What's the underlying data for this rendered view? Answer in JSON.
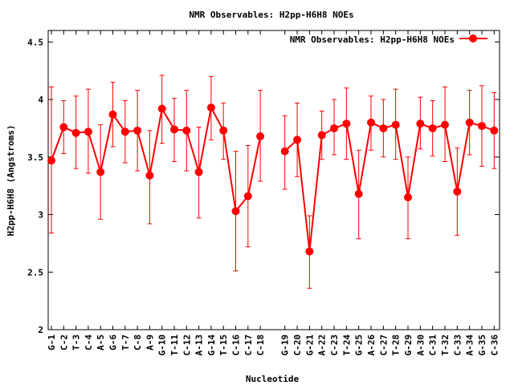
{
  "chart_data": {
    "type": "line",
    "title": "NMR Observables: H2pp-H6H8 NOEs",
    "xlabel": "Nucleotide",
    "ylabel": "H2pp-H6H8 (Angstroms)",
    "ylim": [
      2,
      4.6
    ],
    "y_ticks": [
      "2",
      "2.5",
      "3",
      "3.5",
      "4",
      "4.5"
    ],
    "legend": {
      "position": "top-right",
      "label": "NMR Observables: H2pp-H6H8 NOEs"
    },
    "series_color": "#ff0000",
    "categories": [
      "G-1",
      "C-2",
      "T-3",
      "C-4",
      "A-5",
      "G-6",
      "T-7",
      "C-8",
      "A-9",
      "G-10",
      "T-11",
      "C-12",
      "A-13",
      "G-14",
      "T-15",
      "C-16",
      "C-17",
      "C-18",
      "G-19",
      "C-20",
      "G-21",
      "A-22",
      "C-23",
      "T-24",
      "G-25",
      "A-26",
      "C-27",
      "T-28",
      "G-29",
      "A-30",
      "C-31",
      "T-32",
      "C-33",
      "A-34",
      "G-35",
      "C-36"
    ],
    "segments": [
      [
        0,
        17
      ],
      [
        18,
        35
      ]
    ],
    "values": [
      3.47,
      3.76,
      3.71,
      3.72,
      3.37,
      3.87,
      3.72,
      3.73,
      3.34,
      3.92,
      3.74,
      3.73,
      3.37,
      3.93,
      3.73,
      3.03,
      3.16,
      3.68,
      3.55,
      3.65,
      2.68,
      3.69,
      3.75,
      3.79,
      3.18,
      3.8,
      3.75,
      3.78,
      3.15,
      3.79,
      3.75,
      3.78,
      3.2,
      3.8,
      3.77,
      3.73
    ],
    "err_low": [
      2.84,
      3.53,
      3.4,
      3.36,
      2.96,
      3.59,
      3.45,
      3.38,
      2.92,
      3.62,
      3.46,
      3.38,
      2.97,
      3.65,
      3.48,
      2.51,
      2.72,
      3.29,
      3.22,
      3.33,
      2.36,
      3.48,
      3.52,
      3.48,
      2.79,
      3.56,
      3.5,
      3.48,
      2.79,
      3.57,
      3.51,
      3.46,
      2.82,
      3.52,
      3.42,
      3.4
    ],
    "err_high": [
      4.11,
      3.99,
      4.03,
      4.09,
      3.78,
      4.15,
      3.99,
      4.08,
      3.73,
      4.21,
      4.01,
      4.08,
      3.76,
      4.2,
      3.97,
      3.55,
      3.6,
      4.08,
      3.86,
      3.97,
      2.99,
      3.9,
      4.0,
      4.1,
      3.56,
      4.03,
      4.0,
      4.09,
      3.5,
      4.02,
      3.99,
      4.11,
      3.58,
      4.08,
      4.12,
      4.06
    ]
  }
}
